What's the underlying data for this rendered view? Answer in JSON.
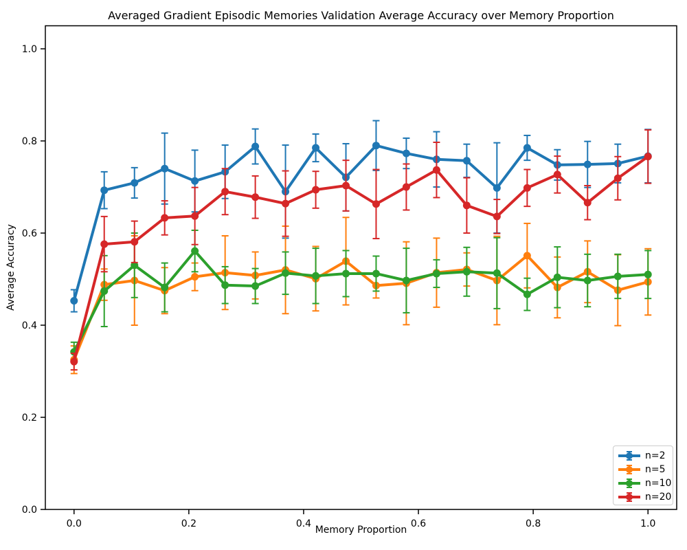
{
  "figure": {
    "title": "Averaged Gradient Episodic Memories Validation Average Accuracy over Memory Proportion",
    "xlabel": "Memory Proportion",
    "ylabel": "Average Accuracy"
  },
  "chart_data": {
    "type": "line",
    "title": "Averaged Gradient Episodic Memories Validation Average Accuracy over Memory Proportion",
    "xlabel": "Memory Proportion",
    "ylabel": "Average Accuracy",
    "xlim": [
      -0.05,
      1.05
    ],
    "ylim": [
      0.0,
      1.05
    ],
    "xticks": [
      0.0,
      0.2,
      0.4,
      0.6,
      0.8,
      1.0
    ],
    "yticks": [
      0.0,
      0.2,
      0.4,
      0.6,
      0.8,
      1.0
    ],
    "grid": false,
    "legend_position": "lower right",
    "marker": "o",
    "error_bars": true,
    "x": [
      0.0,
      0.0526,
      0.1053,
      0.1579,
      0.2105,
      0.2632,
      0.3158,
      0.3684,
      0.4211,
      0.4737,
      0.5263,
      0.5789,
      0.6316,
      0.6842,
      0.7368,
      0.7895,
      0.8421,
      0.8947,
      0.9474,
      1.0
    ],
    "series": [
      {
        "name": "n=2",
        "color": "#1f77b4",
        "values": [
          0.453,
          0.693,
          0.709,
          0.74,
          0.713,
          0.733,
          0.788,
          0.69,
          0.785,
          0.721,
          0.79,
          0.773,
          0.76,
          0.757,
          0.698,
          0.785,
          0.748,
          0.749,
          0.751,
          0.767
        ],
        "errors": [
          0.024,
          0.04,
          0.033,
          0.077,
          0.067,
          0.058,
          0.038,
          0.101,
          0.03,
          0.073,
          0.054,
          0.033,
          0.06,
          0.036,
          0.098,
          0.027,
          0.033,
          0.05,
          0.042,
          0.058
        ]
      },
      {
        "name": "n=5",
        "color": "#ff7f0e",
        "values": [
          0.325,
          0.488,
          0.497,
          0.475,
          0.505,
          0.514,
          0.508,
          0.52,
          0.501,
          0.539,
          0.486,
          0.491,
          0.514,
          0.521,
          0.497,
          0.551,
          0.482,
          0.516,
          0.476,
          0.494
        ],
        "errors": [
          0.03,
          0.034,
          0.097,
          0.05,
          0.03,
          0.08,
          0.051,
          0.095,
          0.07,
          0.095,
          0.027,
          0.09,
          0.075,
          0.036,
          0.096,
          0.07,
          0.066,
          0.067,
          0.077,
          0.072
        ]
      },
      {
        "name": "n=10",
        "color": "#2ca02c",
        "values": [
          0.342,
          0.474,
          0.53,
          0.482,
          0.561,
          0.487,
          0.485,
          0.513,
          0.507,
          0.512,
          0.512,
          0.497,
          0.512,
          0.516,
          0.513,
          0.467,
          0.504,
          0.497,
          0.506,
          0.51
        ],
        "errors": [
          0.021,
          0.077,
          0.07,
          0.053,
          0.045,
          0.04,
          0.038,
          0.046,
          0.06,
          0.05,
          0.038,
          0.07,
          0.03,
          0.053,
          0.077,
          0.035,
          0.066,
          0.057,
          0.048,
          0.052
        ]
      },
      {
        "name": "n=20",
        "color": "#d62728",
        "values": [
          0.321,
          0.576,
          0.581,
          0.633,
          0.637,
          0.69,
          0.678,
          0.664,
          0.694,
          0.703,
          0.663,
          0.7,
          0.737,
          0.66,
          0.636,
          0.698,
          0.727,
          0.666,
          0.719,
          0.766
        ],
        "errors": [
          0.018,
          0.06,
          0.045,
          0.037,
          0.062,
          0.05,
          0.046,
          0.071,
          0.04,
          0.055,
          0.075,
          0.05,
          0.06,
          0.06,
          0.037,
          0.04,
          0.04,
          0.037,
          0.047,
          0.058
        ]
      }
    ]
  }
}
